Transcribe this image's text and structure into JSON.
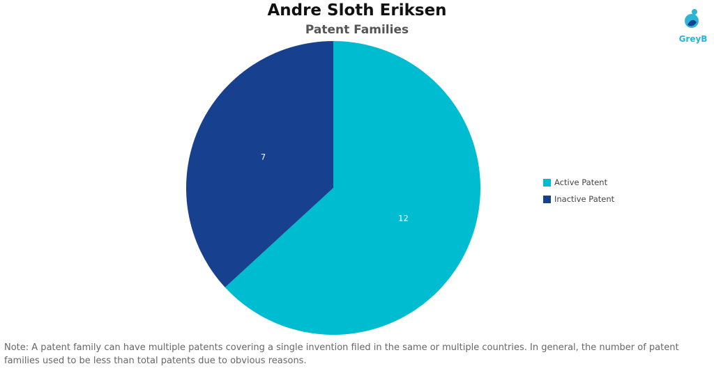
{
  "header": {
    "title": "Andre Sloth Eriksen",
    "subtitle": "Patent Families"
  },
  "logo": {
    "text": "GreyB",
    "icon": "greyb-logo-icon",
    "color": "#29b5d3"
  },
  "chart_data": {
    "type": "pie",
    "title": "Andre Sloth Eriksen",
    "subtitle": "Patent Families",
    "slices": [
      {
        "label": "Active Patent",
        "value": 12,
        "color": "#00bcd0"
      },
      {
        "label": "Inactive Patent",
        "value": 7,
        "color": "#17408e"
      }
    ],
    "legend_position": "right"
  },
  "note": "Note: A patent family can have multiple patents covering a single invention filed in the same or multiple countries. In general, the number of patent families used to be less than total patents due to obvious reasons."
}
